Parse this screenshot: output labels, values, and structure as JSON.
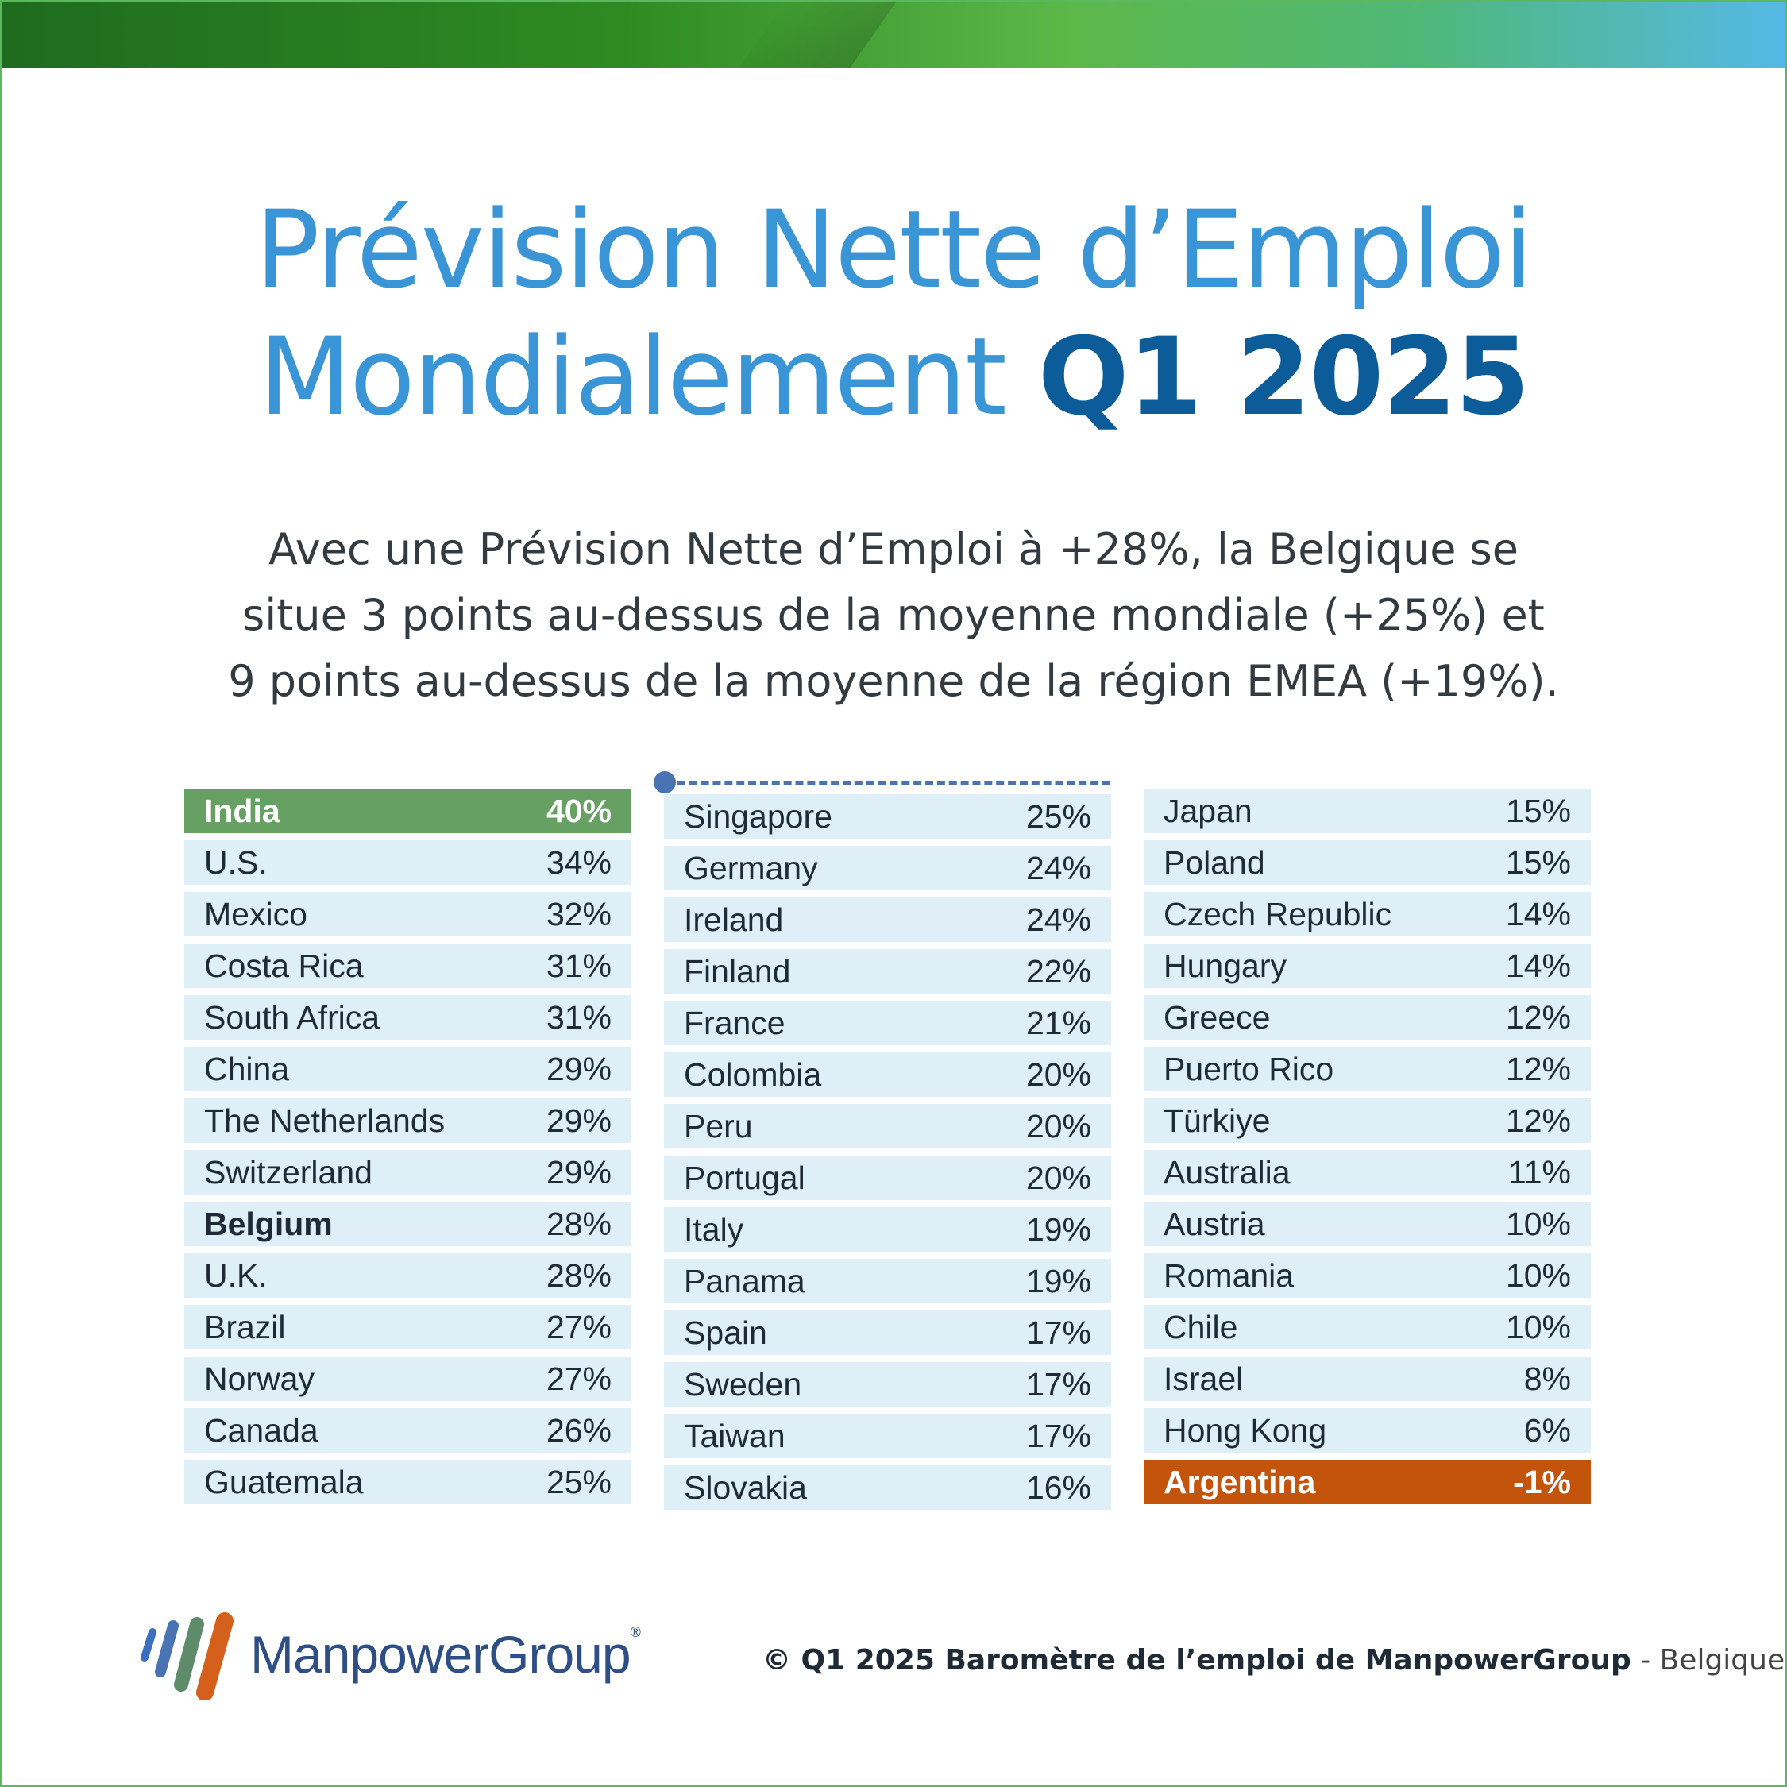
{
  "title": {
    "line1": "Prévision Nette d’Emploi",
    "line2_regular": "Mondialement",
    "line2_bold": "Q1 2025"
  },
  "subtitle": {
    "line1": "Avec une Prévision Nette d’Emploi à +28%, la Belgique se",
    "line2": "situe 3 points au-dessus de la moyenne mondiale (+25%) et",
    "line3": "9 points au-dessus de la moyenne de la région EMEA (+19%)."
  },
  "columns": [
    [
      {
        "country": "India",
        "value": "40%"
      },
      {
        "country": "U.S.",
        "value": "34%"
      },
      {
        "country": "Mexico",
        "value": "32%"
      },
      {
        "country": "Costa Rica",
        "value": "31%"
      },
      {
        "country": "South Africa",
        "value": "31%"
      },
      {
        "country": "China",
        "value": "29%"
      },
      {
        "country": "The Netherlands",
        "value": "29%"
      },
      {
        "country": "Switzerland",
        "value": "29%"
      },
      {
        "country": "Belgium",
        "value": "28%"
      },
      {
        "country": "U.K.",
        "value": "28%"
      },
      {
        "country": "Brazil",
        "value": "27%"
      },
      {
        "country": "Norway",
        "value": "27%"
      },
      {
        "country": "Canada",
        "value": "26%"
      },
      {
        "country": "Guatemala",
        "value": "25%"
      }
    ],
    [
      {
        "country": "Singapore",
        "value": "25%"
      },
      {
        "country": "Germany",
        "value": "24%"
      },
      {
        "country": "Ireland",
        "value": "24%"
      },
      {
        "country": "Finland",
        "value": "22%"
      },
      {
        "country": "France",
        "value": "21%"
      },
      {
        "country": "Colombia",
        "value": "20%"
      },
      {
        "country": "Peru",
        "value": "20%"
      },
      {
        "country": "Portugal",
        "value": "20%"
      },
      {
        "country": "Italy",
        "value": "19%"
      },
      {
        "country": "Panama",
        "value": "19%"
      },
      {
        "country": "Spain",
        "value": "17%"
      },
      {
        "country": "Sweden",
        "value": "17%"
      },
      {
        "country": "Taiwan",
        "value": "17%"
      },
      {
        "country": "Slovakia",
        "value": "16%"
      }
    ],
    [
      {
        "country": "Japan",
        "value": "15%"
      },
      {
        "country": "Poland",
        "value": "15%"
      },
      {
        "country": "Czech Republic",
        "value": "14%"
      },
      {
        "country": "Hungary",
        "value": "14%"
      },
      {
        "country": "Greece",
        "value": "12%"
      },
      {
        "country": "Puerto Rico",
        "value": "12%"
      },
      {
        "country": "Türkiye",
        "value": "12%"
      },
      {
        "country": "Australia",
        "value": "11%"
      },
      {
        "country": "Austria",
        "value": "10%"
      },
      {
        "country": "Romania",
        "value": "10%"
      },
      {
        "country": "Chile",
        "value": "10%"
      },
      {
        "country": "Israel",
        "value": "8%"
      },
      {
        "country": "Hong Kong",
        "value": "6%"
      },
      {
        "country": "Argentina",
        "value": "-1%"
      }
    ]
  ],
  "highlights": {
    "top": "India",
    "home": "Belgium",
    "bottom": "Argentina",
    "top_color": "#66a063",
    "bottom_color": "#c4540b",
    "row_color": "#dfeff8"
  },
  "logo": {
    "text": "ManpowerGroup",
    "registered": "®"
  },
  "footer": {
    "bold": "© Q1 2025 Baromètre de l’emploi de ManpowerGroup",
    "sep": " - ",
    "light": "Belgique"
  },
  "colors": {
    "title": "#3a95d6",
    "title_bold": "#0b5c99",
    "logo_text": "#2e4e86"
  }
}
